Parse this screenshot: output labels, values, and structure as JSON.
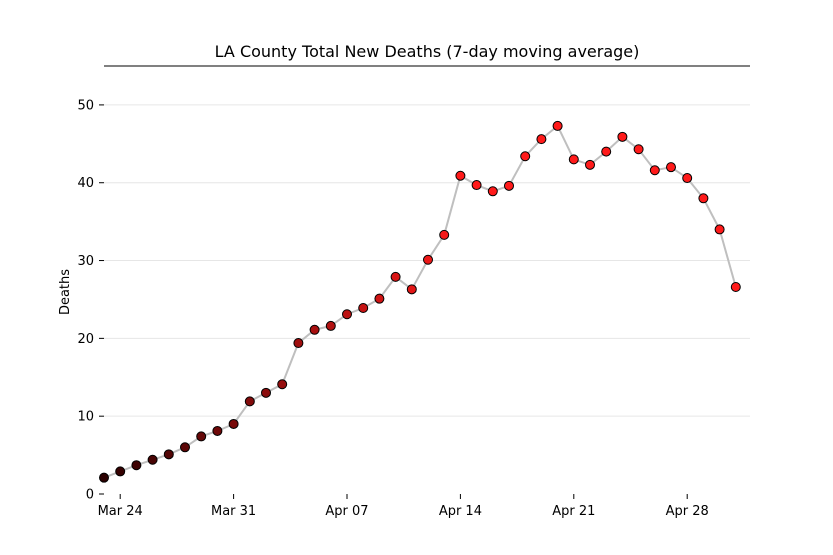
{
  "chart_data": {
    "type": "line",
    "title": "LA County Total New Deaths (7-day moving average)",
    "xlabel": "",
    "ylabel": "Deaths",
    "x_start": "2020-03-23",
    "x": [
      "Mar 23",
      "Mar 24",
      "Mar 25",
      "Mar 26",
      "Mar 27",
      "Mar 28",
      "Mar 29",
      "Mar 30",
      "Mar 31",
      "Apr 01",
      "Apr 02",
      "Apr 03",
      "Apr 04",
      "Apr 05",
      "Apr 06",
      "Apr 07",
      "Apr 08",
      "Apr 09",
      "Apr 10",
      "Apr 11",
      "Apr 12",
      "Apr 13",
      "Apr 14",
      "Apr 15",
      "Apr 16",
      "Apr 17",
      "Apr 18",
      "Apr 19",
      "Apr 20",
      "Apr 21",
      "Apr 22",
      "Apr 23",
      "Apr 24",
      "Apr 25",
      "Apr 26",
      "Apr 27",
      "Apr 28",
      "Apr 29",
      "Apr 30",
      "May 01"
    ],
    "series": [
      {
        "values": [
          2.1,
          2.9,
          3.7,
          4.4,
          5.1,
          6.0,
          7.4,
          8.1,
          9.0,
          11.9,
          13.0,
          14.1,
          19.4,
          21.1,
          21.6,
          23.1,
          23.9,
          25.1,
          27.9,
          26.3,
          30.1,
          33.3,
          40.9,
          39.7,
          38.9,
          39.6,
          43.4,
          45.6,
          47.3,
          43.0,
          42.3,
          44.0,
          45.9,
          44.3,
          41.6,
          42.0,
          40.6,
          38.0,
          34.0,
          26.6
        ]
      }
    ],
    "xticks": [
      "Mar 24",
      "Mar 31",
      "Apr 07",
      "Apr 14",
      "Apr 21",
      "Apr 28"
    ],
    "yticks": [
      0,
      10,
      20,
      30,
      40,
      50
    ],
    "ylim": [
      0,
      55
    ],
    "grid": "horizontal",
    "colors": {
      "line": "#bfbfbf",
      "marker_start": "#2b0000",
      "marker_end": "#ff1a1a",
      "marker_edge": "#000000",
      "grid": "#e6e6e6"
    }
  }
}
